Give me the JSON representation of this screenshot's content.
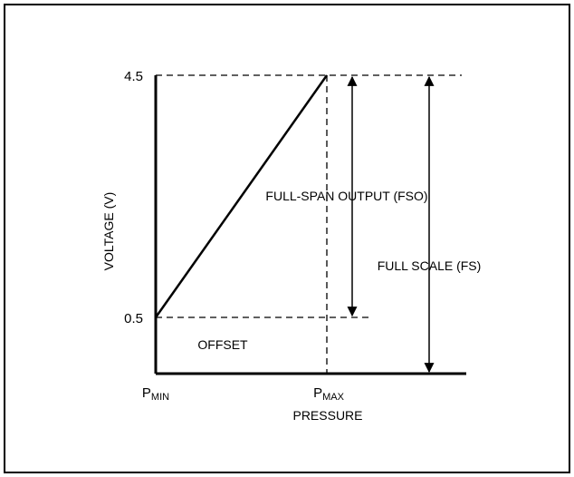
{
  "chart_data": {
    "type": "line",
    "title": "",
    "xlabel": "PRESSURE",
    "ylabel": "VOLTAGE (V)",
    "x_ticks": [
      {
        "main": "P",
        "sub": "MIN"
      },
      {
        "main": "P",
        "sub": "MAX"
      }
    ],
    "y_ticks": [
      "4.5",
      "0.5"
    ],
    "series": [
      {
        "points": [
          {
            "x": "PMIN",
            "y": 0.5
          },
          {
            "x": "PMAX",
            "y": 4.5
          }
        ]
      }
    ],
    "annotations": {
      "offset": "OFFSET",
      "fso": "FULL-SPAN OUTPUT (FSO)",
      "fs": "FULL SCALE (FS)"
    },
    "grid": false
  },
  "colors": {
    "line": "#000000",
    "background": "#ffffff"
  }
}
